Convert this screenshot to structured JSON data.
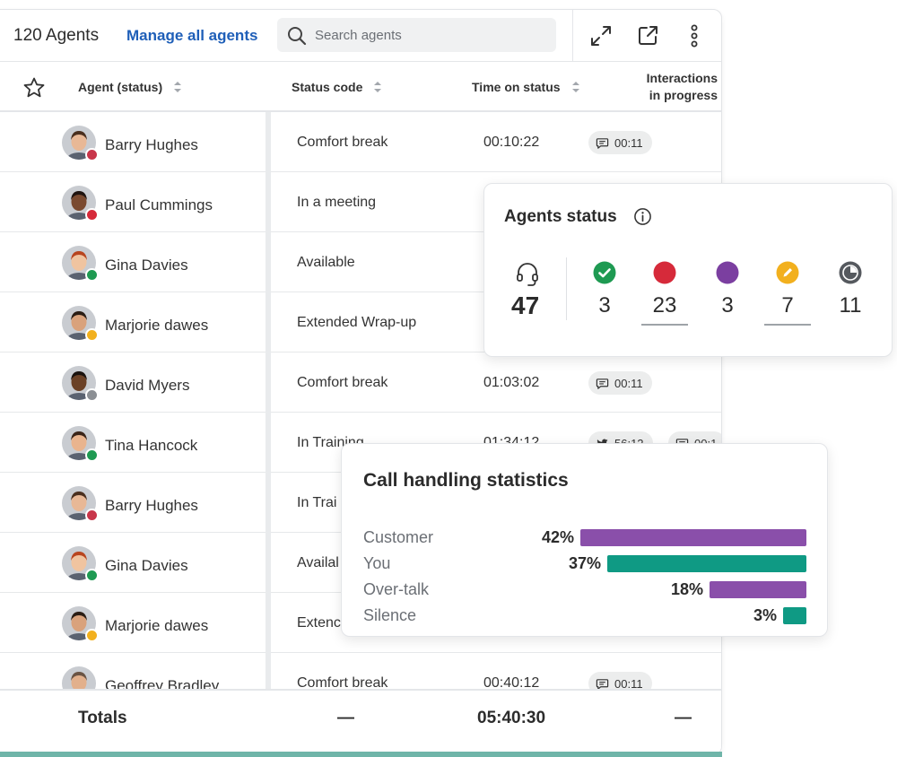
{
  "header": {
    "agents_count": "120 Agents",
    "manage_link": "Manage all agents",
    "search_placeholder": "Search agents",
    "icons": [
      "expand-icon",
      "open-external-icon",
      "more-vertical-icon"
    ]
  },
  "columns": {
    "agent": "Agent (status)",
    "status_code": "Status code",
    "time_on_status": "Time on status",
    "interactions_line1": "Interactions",
    "interactions_line2": "in progress"
  },
  "rows": [
    {
      "name": "Barry Hughes",
      "status": "Comfort break",
      "time": "00:10:22",
      "badge": "#c8364a",
      "chips": [
        {
          "icon": "chat-icon",
          "text": "00:11"
        }
      ]
    },
    {
      "name": "Paul Cummings",
      "status": "In a meeting",
      "time": "",
      "badge": "#d62a3a",
      "chips": []
    },
    {
      "name": "Gina Davies",
      "status": "Available",
      "time": "",
      "badge": "#1e9a52",
      "chips": []
    },
    {
      "name": "Marjorie dawes",
      "status": "Extended Wrap-up",
      "time": "",
      "badge": "#f2b01e",
      "chips": []
    },
    {
      "name": "David Myers",
      "status": "Comfort break",
      "time": "01:03:02",
      "badge": "#8b8f94",
      "chips": [
        {
          "icon": "chat-icon",
          "text": "00:11"
        }
      ]
    },
    {
      "name": "Tina Hancock",
      "status": "In Training",
      "time": "01:34:12",
      "badge": "#1e9a52",
      "chips": [
        {
          "icon": "twitter-icon",
          "text": "56:12"
        },
        {
          "icon": "message-icon",
          "text": "00:1"
        }
      ]
    },
    {
      "name": "Barry Hughes",
      "status": "In Trai",
      "time": "",
      "badge": "#c8364a",
      "chips": []
    },
    {
      "name": "Gina Davies",
      "status": "Availal",
      "time": "",
      "badge": "#1e9a52",
      "chips": []
    },
    {
      "name": "Marjorie dawes",
      "status": "Extenc",
      "time": "",
      "badge": "#f2b01e",
      "chips": []
    },
    {
      "name": "Geoffrey Bradley",
      "status": "Comfort break",
      "time": "00:40:12",
      "badge": "#8b8f94",
      "chips": [
        {
          "icon": "chat-icon",
          "text": "00:11"
        }
      ]
    }
  ],
  "totals": {
    "label": "Totals",
    "status": "—",
    "time": "05:40:30",
    "interactions": "—"
  },
  "agents_status": {
    "title": "Agents status",
    "total": "47",
    "items": [
      {
        "key": "available",
        "icon": "check-circle-icon",
        "color": "#1e9a52",
        "value": "3"
      },
      {
        "key": "busy",
        "icon": "red-dot-icon",
        "color": "#d62a3a",
        "value": "23"
      },
      {
        "key": "purple",
        "icon": "purple-dot-icon",
        "color": "#7b3fa0",
        "value": "3"
      },
      {
        "key": "wrapup",
        "icon": "pencil-circle-icon",
        "color": "#f2b01e",
        "value": "7"
      },
      {
        "key": "away",
        "icon": "clock-circle-icon",
        "color": "#55595e",
        "value": "11"
      }
    ]
  },
  "call_stats": {
    "title": "Call handling statistics",
    "rows": [
      {
        "label": "Customer",
        "pct": "42%",
        "value": 42,
        "color": "#8a4faa"
      },
      {
        "label": "You",
        "pct": "37%",
        "value": 37,
        "color": "#0f9a84"
      },
      {
        "label": "Over-talk",
        "pct": "18%",
        "value": 18,
        "color": "#8a4faa"
      },
      {
        "label": "Silence",
        "pct": "3%",
        "value": 3,
        "color": "#0f9a84"
      }
    ]
  }
}
